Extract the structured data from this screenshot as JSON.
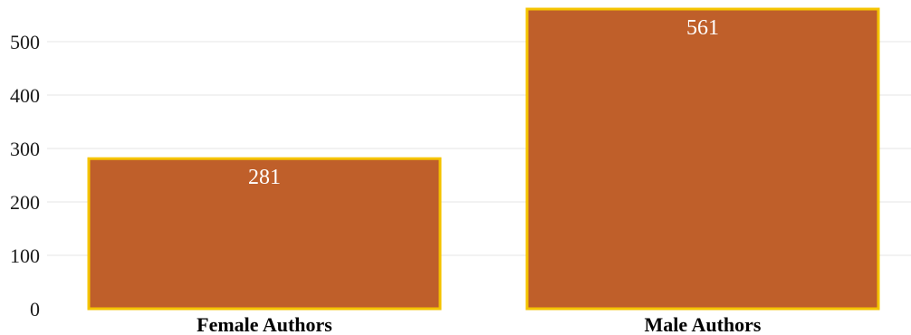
{
  "chart_data": {
    "type": "bar",
    "categories": [
      "Female Authors",
      "Male Authors"
    ],
    "values": [
      281,
      561
    ],
    "data_labels": [
      "281",
      "561"
    ],
    "y_ticks": [
      0,
      100,
      200,
      300,
      400,
      500
    ],
    "ylim": [
      0,
      575
    ],
    "grid": true,
    "legend": "none",
    "colors": {
      "bar_fill": "#bf5f2a",
      "bar_stroke": "#f5c400",
      "grid": "#e6e6e6",
      "label_text": "#ffffff"
    }
  }
}
